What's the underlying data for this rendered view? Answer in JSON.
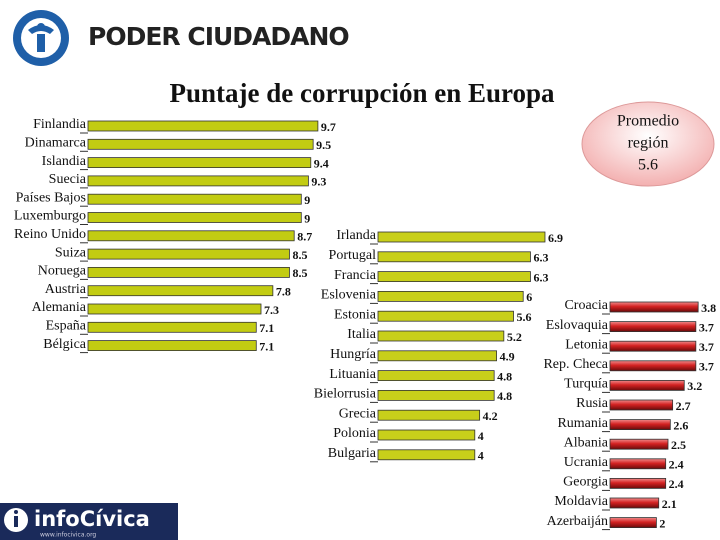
{
  "header": {
    "organization": "PODER CIUDADANO",
    "title": "Puntaje de corrupción en Europa"
  },
  "callout": {
    "lines": [
      "Promedio",
      "región"
    ],
    "value": 5.6
  },
  "footer": {
    "brand": "infoCívica",
    "url": "www.infocivica.org"
  },
  "chart_data": [
    {
      "type": "bar",
      "orientation": "horizontal",
      "color": "#c2cc12",
      "categories": [
        "Finlandia",
        "Dinamarca",
        "Islandia",
        "Suecia",
        "Países Bajos",
        "Luxemburgo",
        "Reino Unido",
        "Suiza",
        "Noruega",
        "Austria",
        "Alemania",
        "España",
        "Bélgica"
      ],
      "values": [
        9.7,
        9.5,
        9.4,
        9.3,
        9,
        9,
        8.7,
        8.5,
        8.5,
        7.8,
        7.3,
        7.1,
        7.1
      ]
    },
    {
      "type": "bar",
      "orientation": "horizontal",
      "color": "#c8cf1a",
      "categories": [
        "Irlanda",
        "Portugal",
        "Francia",
        "Eslovenia",
        "Estonia",
        "Italia",
        "Hungría",
        "Lituania",
        "Bielorrusia",
        "Grecia",
        "Polonia",
        "Bulgaria"
      ],
      "values": [
        6.9,
        6.3,
        6.3,
        6,
        5.6,
        5.2,
        4.9,
        4.8,
        4.8,
        4.2,
        4,
        4
      ]
    },
    {
      "type": "bar",
      "orientation": "horizontal",
      "color": "#d42222",
      "categories": [
        "Croacia",
        "Eslovaquia",
        "Letonia",
        "Rep. Checa",
        "Turquía",
        "Rusia",
        "Rumania",
        "Albania",
        "Ucrania",
        "Georgia",
        "Moldavia",
        "Azerbaiján"
      ],
      "values": [
        3.8,
        3.7,
        3.7,
        3.7,
        3.2,
        2.7,
        2.6,
        2.5,
        2.4,
        2.4,
        2.1,
        2
      ]
    }
  ]
}
